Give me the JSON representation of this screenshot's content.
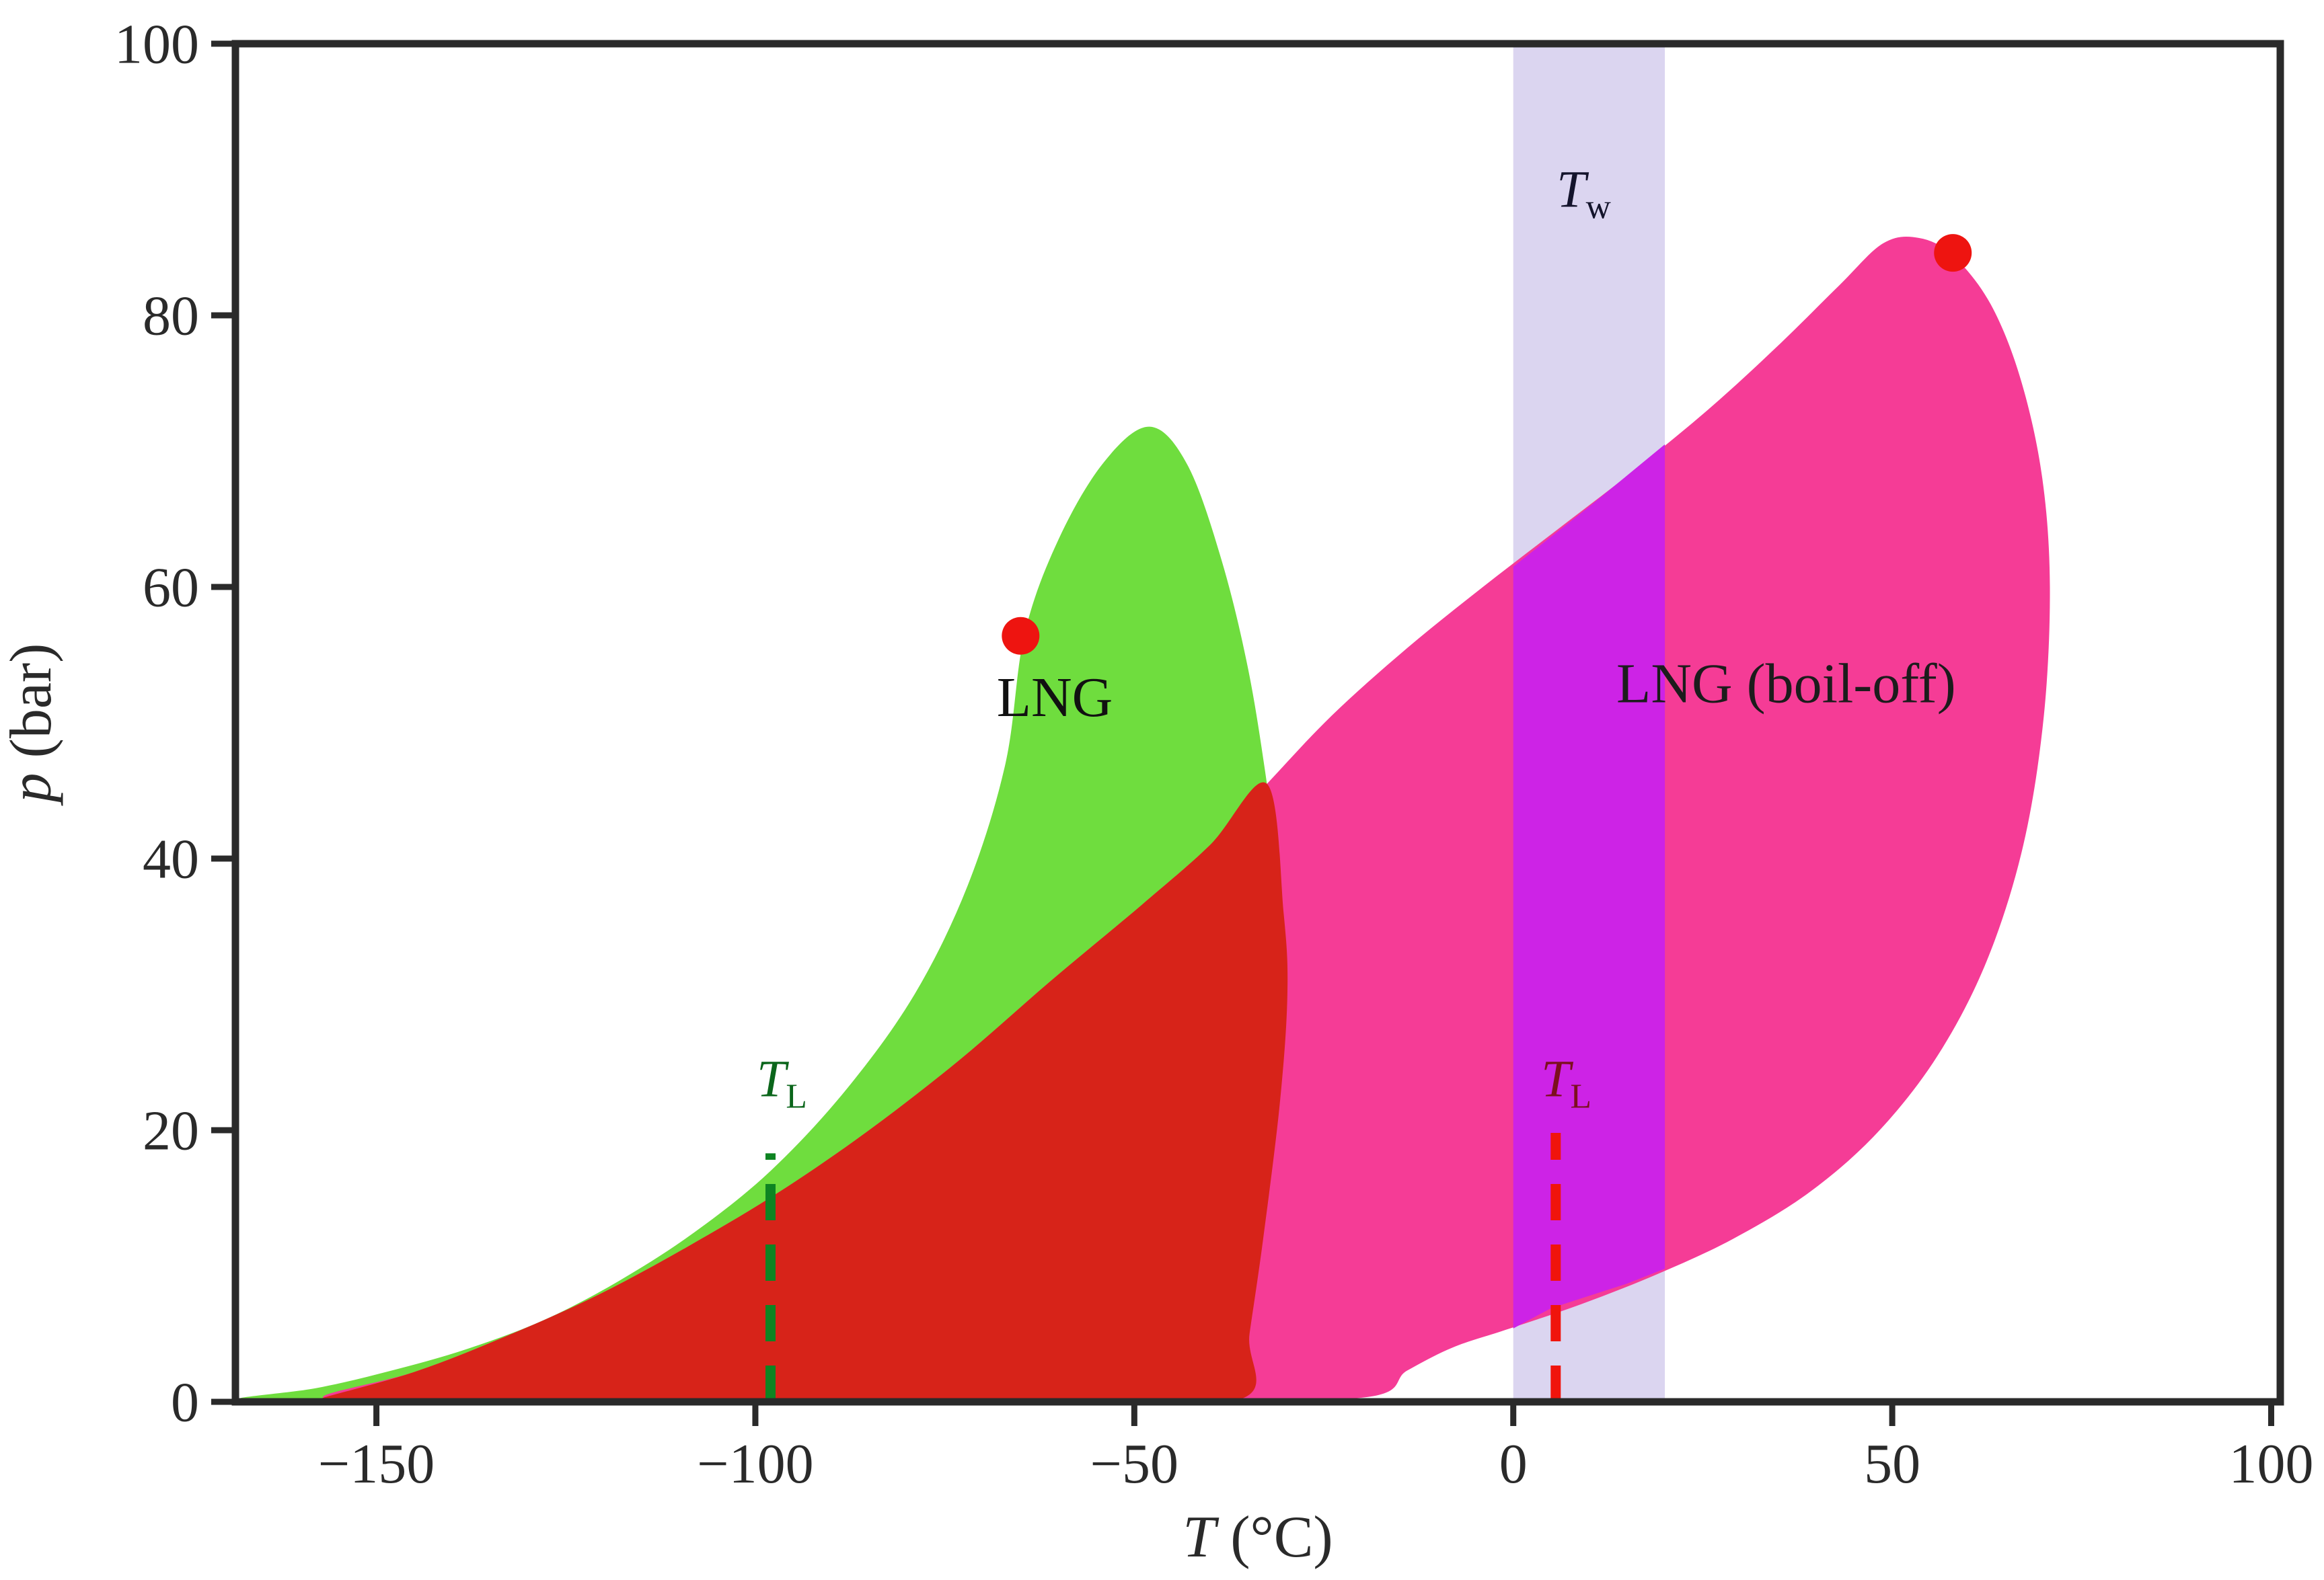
{
  "chart_data": {
    "type": "area",
    "title": "",
    "xlabel": "T (°C)",
    "xlabel_parts": {
      "var": "T",
      "rest": " (°C)"
    },
    "ylabel": "p (bar)",
    "ylabel_parts": {
      "var": "p",
      "rest": " (bar)"
    },
    "xlim": [
      -168.6,
      101.2
    ],
    "ylim": [
      0,
      100
    ],
    "grid": false,
    "legend": "none",
    "x_axis": {
      "ticks": [
        {
          "v": -150,
          "label": "−150"
        },
        {
          "v": -100,
          "label": "−100"
        },
        {
          "v": -50,
          "label": "−50"
        },
        {
          "v": 0,
          "label": "0"
        },
        {
          "v": 50,
          "label": "50"
        },
        {
          "v": 100,
          "label": "100"
        }
      ]
    },
    "y_axis": {
      "ticks": [
        {
          "v": 0,
          "label": "0"
        },
        {
          "v": 20,
          "label": "20"
        },
        {
          "v": 40,
          "label": "40"
        },
        {
          "v": 60,
          "label": "60"
        },
        {
          "v": 80,
          "label": "80"
        },
        {
          "v": 100,
          "label": "100"
        }
      ]
    },
    "band": {
      "name": "water-temperature-band",
      "t0": 0,
      "t1": 20,
      "color": "#dbd5f0"
    },
    "regions": [
      {
        "name": "lng-envelope",
        "color": "#6fdd3e",
        "smooth": true,
        "points": [
          [
            -168,
            0.2
          ],
          [
            -158,
            1
          ],
          [
            -148,
            2.3
          ],
          [
            -138,
            3.9
          ],
          [
            -128,
            6
          ],
          [
            -118,
            8.9
          ],
          [
            -108,
            12.5
          ],
          [
            -98,
            17
          ],
          [
            -88,
            23
          ],
          [
            -79,
            30
          ],
          [
            -72,
            38
          ],
          [
            -67,
            47
          ],
          [
            -64.5,
            56.5
          ],
          [
            -60,
            63.5
          ],
          [
            -54,
            69.2
          ],
          [
            -48,
            71.8
          ],
          [
            -43,
            69
          ],
          [
            -38.5,
            62
          ],
          [
            -35,
            54
          ],
          [
            -32.5,
            45.5
          ],
          [
            -30.3,
            36
          ],
          [
            -29.8,
            30
          ],
          [
            -30.8,
            22
          ],
          [
            -33,
            12
          ],
          [
            -34.8,
            5
          ],
          [
            -36,
            0.2
          ],
          [
            -60,
            0.2
          ],
          [
            -90,
            0.2
          ],
          [
            -120,
            0.2
          ],
          [
            -150,
            0.2
          ]
        ]
      },
      {
        "name": "lng-boiloff-envelope",
        "color": "#f53c96",
        "smooth": true,
        "points": [
          [
            -157,
            0.3
          ],
          [
            -145,
            2.2
          ],
          [
            -133,
            4.8
          ],
          [
            -121,
            7.8
          ],
          [
            -109,
            11.4
          ],
          [
            -97,
            15.4
          ],
          [
            -85,
            20
          ],
          [
            -73,
            25.2
          ],
          [
            -61,
            31
          ],
          [
            -49,
            36.6
          ],
          [
            -40,
            41
          ],
          [
            -32.5,
            45.5
          ],
          [
            -24,
            50.5
          ],
          [
            -14,
            55.5
          ],
          [
            -4,
            60
          ],
          [
            6,
            64.3
          ],
          [
            16,
            68.6
          ],
          [
            26,
            73.2
          ],
          [
            35,
            77.8
          ],
          [
            43,
            82.2
          ],
          [
            48.8,
            85.3
          ],
          [
            53.5,
            85.7
          ],
          [
            58,
            84.4
          ],
          [
            63,
            80.8
          ],
          [
            67,
            75.2
          ],
          [
            69.8,
            68
          ],
          [
            70.8,
            60
          ],
          [
            70,
            50.5
          ],
          [
            67.3,
            41
          ],
          [
            62.5,
            32.5
          ],
          [
            56,
            25.5
          ],
          [
            48,
            19.8
          ],
          [
            39,
            15.4
          ],
          [
            29,
            12
          ],
          [
            19,
            9.4
          ],
          [
            9,
            7.2
          ],
          [
            -1,
            5.3
          ],
          [
            -8,
            4
          ],
          [
            -14,
            2.3
          ],
          [
            -20,
            0.3
          ],
          [
            -50,
            0.3
          ],
          [
            -80,
            0.3
          ],
          [
            -110,
            0.3
          ],
          [
            -140,
            0.3
          ]
        ]
      },
      {
        "name": "envelope-overlap",
        "color": "#d72319",
        "smooth": true,
        "points": [
          [
            -157,
            0.3
          ],
          [
            -145,
            2.2
          ],
          [
            -133,
            4.8
          ],
          [
            -121,
            7.8
          ],
          [
            -109,
            11.4
          ],
          [
            -97,
            15.4
          ],
          [
            -85,
            20
          ],
          [
            -73,
            25.2
          ],
          [
            -61,
            31
          ],
          [
            -49,
            36.6
          ],
          [
            -40,
            41
          ],
          [
            -32.5,
            45.5
          ],
          [
            -30.3,
            36
          ],
          [
            -29.8,
            30
          ],
          [
            -30.8,
            22
          ],
          [
            -33,
            12
          ],
          [
            -34.8,
            5
          ],
          [
            -36,
            0.2
          ],
          [
            -60,
            0.2
          ],
          [
            -90,
            0.2
          ],
          [
            -120,
            0.2
          ],
          [
            -150,
            0.2
          ],
          [
            -156,
            0.25
          ]
        ]
      },
      {
        "name": "band-boiloff-overlap",
        "color": "#cd23e6",
        "smooth": false,
        "points": [
          [
            0,
            5.4
          ],
          [
            0,
            61.5
          ],
          [
            5,
            63.7
          ],
          [
            10,
            65.9
          ],
          [
            15,
            68.2
          ],
          [
            20,
            70.5
          ],
          [
            20,
            9.8
          ],
          [
            15,
            8.7
          ],
          [
            10,
            7.8
          ],
          [
            5,
            6.9
          ]
        ]
      }
    ],
    "lines": [
      {
        "name": "loading-temperature-lng",
        "t": -98,
        "p0": 0,
        "p1": 18.3,
        "color": "#0e8422",
        "width": 15,
        "dash": "54 36"
      },
      {
        "name": "loading-temperature-boiloff",
        "t": 5.6,
        "p0": 0,
        "p1": 19.8,
        "color": "#f0140c",
        "width": 15,
        "dash": "54 36"
      }
    ],
    "points": [
      {
        "name": "critical-point-lng",
        "t": -65,
        "p": 56.4,
        "r": 28,
        "color": "#ee1410"
      },
      {
        "name": "critical-point-boiloff",
        "t": 58,
        "p": 84.6,
        "r": 28,
        "color": "#ee1410"
      }
    ],
    "labels": [
      {
        "name": "label-lng",
        "text": "LNG",
        "t": -60.5,
        "p": 50.5,
        "size": 84,
        "color": "#111111",
        "italic": false
      },
      {
        "name": "label-lng-boiloff",
        "text": "LNG (boil-off)",
        "t": 36,
        "p": 51.5,
        "size": 84,
        "color": "#1c1c1c",
        "italic": false
      },
      {
        "name": "label-tw",
        "main": "T",
        "sub": "w",
        "t": 9.3,
        "p": 88,
        "size": 78,
        "color": "#14142c",
        "italic": true
      },
      {
        "name": "label-tl-lng",
        "main": "T",
        "sub": "L",
        "t": -96.5,
        "p": 22.5,
        "size": 78,
        "color": "#0b661b",
        "italic": true
      },
      {
        "name": "label-tl-boiloff",
        "main": "T",
        "sub": "L",
        "t": 7,
        "p": 22.5,
        "size": 78,
        "color": "#7c0f1e",
        "italic": true
      }
    ],
    "axis_color": "#2a2a2a",
    "tick_font_size": 84,
    "axis_label_font_size": 88
  }
}
